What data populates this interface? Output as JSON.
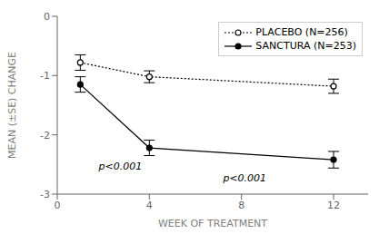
{
  "chart_data": {
    "type": "line",
    "x": [
      1,
      4,
      12
    ],
    "series": [
      {
        "name": "PLACEBO (N=256)",
        "color": "#000000",
        "values": [
          -0.78,
          -1.02,
          -1.18
        ],
        "yerr": [
          0.13,
          0.1,
          0.12
        ],
        "marker": "circle_open",
        "line_style": "dotted"
      },
      {
        "name": "SANCTURA (N=253)",
        "color": "#000000",
        "values": [
          -1.15,
          -2.22,
          -2.42
        ],
        "yerr": [
          0.13,
          0.13,
          0.14
        ],
        "marker": "circle",
        "line_style": "solid"
      }
    ],
    "annotations": [
      {
        "x": 1.8,
        "y": -2.58,
        "text": "p<0.001"
      },
      {
        "x": 7.2,
        "y": -2.78,
        "text": "p<0.001"
      }
    ],
    "xlim": [
      0,
      13.5
    ],
    "ylim": [
      -3,
      0
    ],
    "xticks": [
      0,
      4,
      8,
      12
    ],
    "yticks": [
      0,
      -1,
      -2,
      -3
    ],
    "xlabel": "WEEK OF TREATMENT",
    "ylabel": "MEAN (±SE) CHANGE",
    "legend": "upper right",
    "grid": false
  }
}
